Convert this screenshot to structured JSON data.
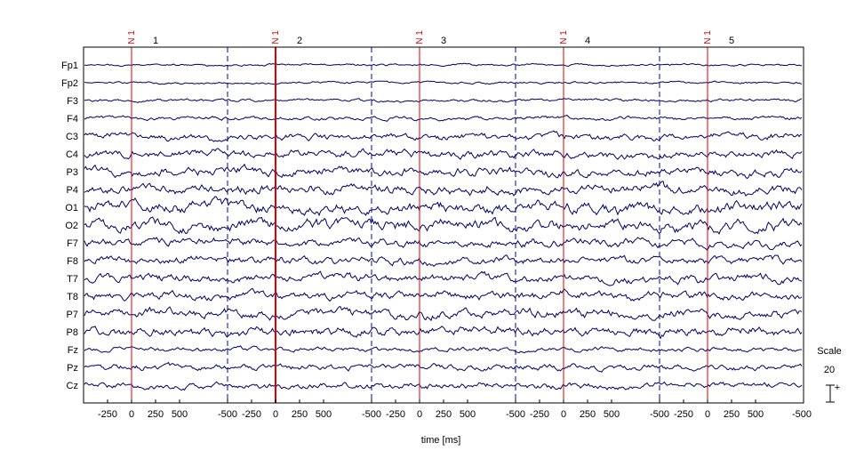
{
  "chart_data": {
    "type": "line",
    "title": "",
    "xlabel": "time [ms]",
    "ylabel": "",
    "epoch_window_ms": [
      -500,
      1000
    ],
    "epoch_tick_labels": [
      "-500",
      "-250",
      "0",
      "250",
      "500"
    ],
    "epochs": [
      {
        "number": "1",
        "event_label": "N 1",
        "event_time_ms": 0
      },
      {
        "number": "2",
        "event_label": "N 1",
        "event_time_ms": 0
      },
      {
        "number": "3",
        "event_label": "N 1",
        "event_time_ms": 0
      },
      {
        "number": "4",
        "event_label": "N 1",
        "event_time_ms": 0
      },
      {
        "number": "5",
        "event_label": "N 1",
        "event_time_ms": 0
      }
    ],
    "channels": [
      "Fp1",
      "Fp2",
      "F3",
      "F4",
      "C3",
      "C4",
      "P3",
      "P4",
      "O1",
      "O2",
      "F7",
      "F8",
      "T7",
      "T8",
      "P7",
      "P8",
      "Fz",
      "Pz",
      "Cz"
    ],
    "scale": {
      "label": "Scale",
      "value": "20",
      "polarity": "+"
    },
    "colors": {
      "trace": "#000066",
      "event": "#e00000",
      "epoch_boundary": "#0000aa",
      "axes": "#000000"
    },
    "grid": false
  }
}
